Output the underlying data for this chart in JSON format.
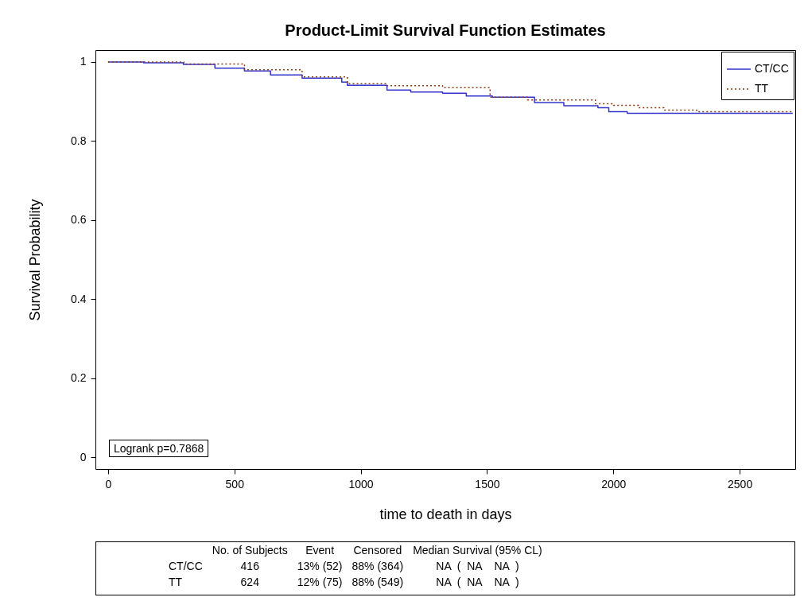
{
  "chart_data": {
    "type": "step",
    "title": "Product-Limit Survival Function Estimates",
    "xlabel": "time to death in days",
    "ylabel": "Survival Probability",
    "series": [
      {
        "name": "CT/CC",
        "color": "#3333cc",
        "line_style": "solid",
        "x": [
          0,
          141,
          298,
          423,
          540,
          643,
          768,
          925,
          947,
          1104,
          1198,
          1324,
          1418,
          1521,
          1688,
          1804,
          1939,
          1982,
          2055,
          2710
        ],
        "values": [
          1.0,
          0.998,
          0.994,
          0.984,
          0.977,
          0.967,
          0.959,
          0.949,
          0.941,
          0.929,
          0.924,
          0.921,
          0.914,
          0.911,
          0.897,
          0.889,
          0.884,
          0.874,
          0.87,
          0.87
        ]
      },
      {
        "name": "TT",
        "color": "#8b3a0f",
        "line_style": "dotted",
        "x": [
          0,
          300,
          540,
          768,
          947,
          1104,
          1324,
          1512,
          1660,
          1929,
          2000,
          2100,
          2200,
          2330,
          2710
        ],
        "values": [
          1.0,
          0.995,
          0.98,
          0.962,
          0.945,
          0.94,
          0.935,
          0.911,
          0.904,
          0.894,
          0.89,
          0.884,
          0.878,
          0.874,
          0.874
        ]
      }
    ],
    "xlim": [
      -50,
      2720
    ],
    "xticks": [
      0,
      500,
      1000,
      1500,
      2000,
      2500
    ],
    "ylim": [
      -0.03,
      1.03
    ],
    "yticks": [
      0,
      0.2,
      0.4,
      0.6,
      0.8,
      1
    ],
    "grid": false,
    "legend": "top right",
    "annotations": [
      "Logrank p=0.7868",
      "No. of Subjects",
      "Event",
      "Censored",
      "Median Survival (95% CL)",
      "CT/CC",
      "416",
      "13% (52)",
      "88% (364)",
      "NA  (  NA    NA  )",
      "TT",
      "624",
      "12% (75)",
      "88% (549)",
      "NA  (  NA    NA  )"
    ]
  }
}
